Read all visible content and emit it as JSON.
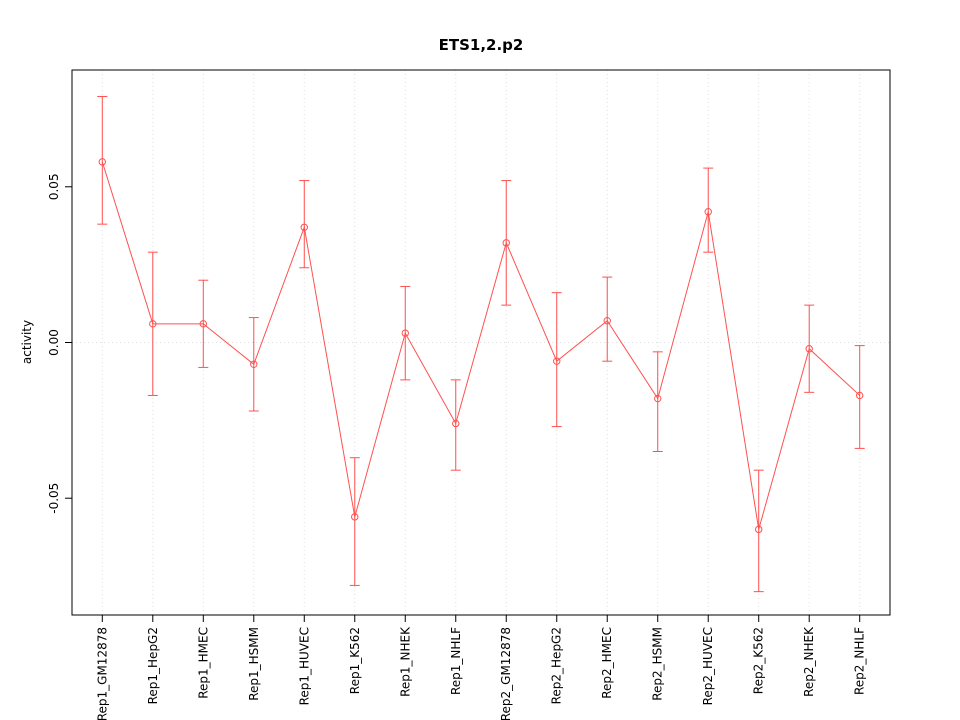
{
  "chart_data": {
    "type": "line",
    "title": "ETS1,2.p2",
    "ylabel": "activity",
    "xlabel": "",
    "legend": "none",
    "grid": true,
    "categories": [
      "Rep1_GM12878",
      "Rep1_HepG2",
      "Rep1_HMEC",
      "Rep1_HSMM",
      "Rep1_HUVEC",
      "Rep1_K562",
      "Rep1_NHEK",
      "Rep1_NHLF",
      "Rep2_GM12878",
      "Rep2_HepG2",
      "Rep2_HMEC",
      "Rep2_HSMM",
      "Rep2_HUVEC",
      "Rep2_K562",
      "Rep2_NHEK",
      "Rep2_NHLF"
    ],
    "values": [
      0.058,
      0.006,
      0.006,
      -0.007,
      0.037,
      -0.056,
      0.003,
      -0.026,
      0.032,
      -0.006,
      0.007,
      -0.018,
      0.042,
      -0.06,
      -0.002,
      -0.017
    ],
    "err_low": [
      0.038,
      -0.017,
      -0.008,
      -0.022,
      0.024,
      -0.078,
      -0.012,
      -0.041,
      0.012,
      -0.027,
      -0.006,
      -0.035,
      0.029,
      -0.08,
      -0.016,
      -0.034
    ],
    "err_high": [
      0.079,
      0.029,
      0.02,
      0.008,
      0.052,
      -0.037,
      0.018,
      -0.012,
      0.052,
      0.016,
      0.021,
      -0.003,
      0.056,
      -0.041,
      0.012,
      -0.001
    ],
    "ylim": [
      -0.0875,
      0.0875
    ],
    "yticks": [
      -0.05,
      0.0,
      0.05
    ],
    "ytick_labels": [
      "-0.05",
      "0.00",
      "0.05"
    ],
    "zero_line": 0,
    "series_color": "#ff5050",
    "grid_color": "#dedede",
    "axis_color": "#000000",
    "background": "#ffffff"
  }
}
